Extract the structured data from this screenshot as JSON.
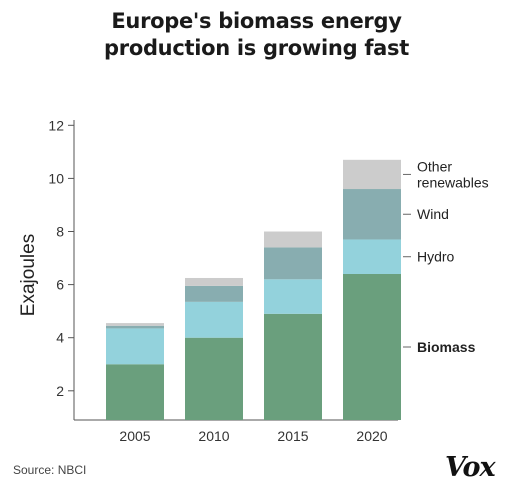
{
  "header": {
    "title_line1": "Europe's biomass energy",
    "title_line2": "production is growing fast"
  },
  "chart_data": {
    "type": "bar",
    "stacked": true,
    "title": "Europe's biomass energy production is growing fast",
    "xlabel": "",
    "ylabel": "Exajoules",
    "ylim": [
      0.9,
      12.2
    ],
    "yticks": [
      2,
      4,
      6,
      8,
      10,
      12
    ],
    "categories": [
      "2005",
      "2010",
      "2015",
      "2020"
    ],
    "series": [
      {
        "name": "Biomass",
        "values": [
          3.0,
          4.0,
          4.9,
          6.4
        ],
        "color": "#6a9f7d"
      },
      {
        "name": "Hydro",
        "values": [
          1.35,
          1.35,
          1.3,
          1.3
        ],
        "color": "#93d2dc"
      },
      {
        "name": "Wind",
        "values": [
          0.1,
          0.6,
          1.2,
          1.9
        ],
        "color": "#88adb0"
      },
      {
        "name": "Other renewables",
        "values": [
          0.1,
          0.3,
          0.6,
          1.1
        ],
        "color": "#cccccc"
      }
    ],
    "legend": [
      {
        "series": "Other renewables",
        "lines": [
          "Other",
          "renewables"
        ],
        "bold": false
      },
      {
        "series": "Wind",
        "lines": [
          "Wind"
        ],
        "bold": false
      },
      {
        "series": "Hydro",
        "lines": [
          "Hydro"
        ],
        "bold": false
      },
      {
        "series": "Biomass",
        "lines": [
          "Biomass"
        ],
        "bold": true
      }
    ],
    "legend_placement": "right",
    "grid": false
  },
  "footer": {
    "source": "Source: NBCI",
    "logo_text": "Vox"
  }
}
